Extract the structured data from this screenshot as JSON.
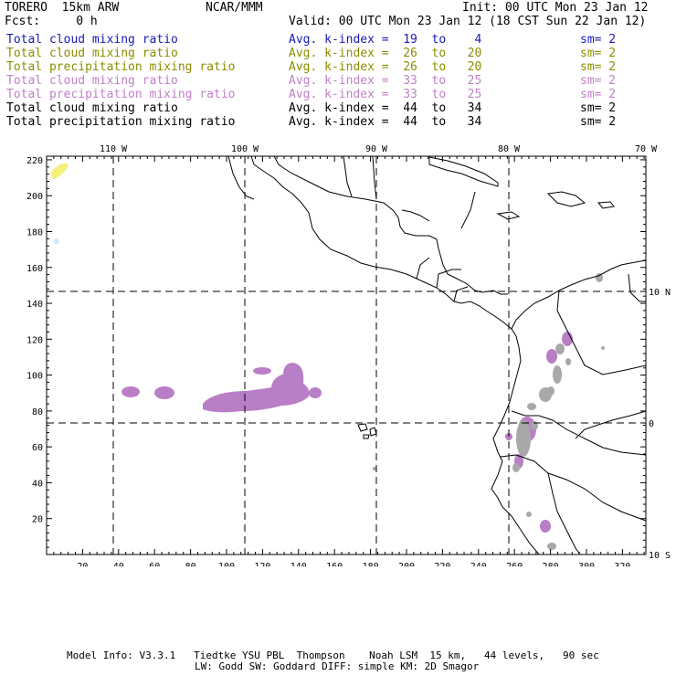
{
  "header": {
    "model": "TORERO  15km ARW",
    "org": "NCAR/MMM",
    "init": "Init: 00 UTC Mon 23 Jan 12",
    "fcst": "Fcst:     0 h",
    "valid": "Valid: 00 UTC Mon 23 Jan 12 (18 CST Sun 22 Jan 12)"
  },
  "legend": [
    {
      "name": "Total cloud mixing ratio",
      "kindex": "Avg. k-index =  19  to    4",
      "sm": "sm= 2",
      "color": "#1a1ab4"
    },
    {
      "name": "Total cloud mixing ratio",
      "kindex": "Avg. k-index =  26  to   20",
      "sm": "sm= 2",
      "color": "#8c8c00"
    },
    {
      "name": "Total precipitation mixing ratio",
      "kindex": "Avg. k-index =  26  to   20",
      "sm": "sm= 2",
      "color": "#8c8c00"
    },
    {
      "name": "Total cloud mixing ratio",
      "kindex": "Avg. k-index =  33  to   25",
      "sm": "sm= 2",
      "color": "#c080c8"
    },
    {
      "name": "Total precipitation mixing ratio",
      "kindex": "Avg. k-index =  33  to   25",
      "sm": "sm= 2",
      "color": "#c080c8"
    },
    {
      "name": "Total cloud mixing ratio",
      "kindex": "Avg. k-index =  44  to   34",
      "sm": "sm= 2",
      "color": "#000000"
    },
    {
      "name": "Total precipitation mixing ratio",
      "kindex": "Avg. k-index =  44  to   34",
      "sm": "sm= 2",
      "color": "#000000"
    }
  ],
  "axes": {
    "lon_labels": [
      "110 W",
      "100 W",
      "90 W",
      "80 W",
      "70 W"
    ],
    "lat_labels": [
      "10 N",
      "0",
      "10 S"
    ],
    "x_ticks": [
      "20",
      "40",
      "60",
      "80",
      "100",
      "120",
      "140",
      "160",
      "180",
      "200",
      "220",
      "240",
      "260",
      "280",
      "300",
      "320"
    ],
    "y_ticks": [
      "220",
      "200",
      "180",
      "160",
      "140",
      "120",
      "100",
      "80",
      "60",
      "40",
      "20"
    ],
    "x_range": [
      0,
      333
    ],
    "y_range": [
      0,
      222
    ]
  },
  "colors": {
    "purple": "#b97fc6",
    "gray": "#a8a8a8",
    "yellow": "#f4f07a",
    "lightblue": "#cfe8f8"
  },
  "footer": {
    "line1": "Model Info: V3.3.1   Tiedtke YSU PBL  Thompson    Noah LSM  15 km,   44 levels,   90 sec",
    "line2": "LW: Godd SW: Goddard DIFF: simple KM: 2D Smagor"
  }
}
